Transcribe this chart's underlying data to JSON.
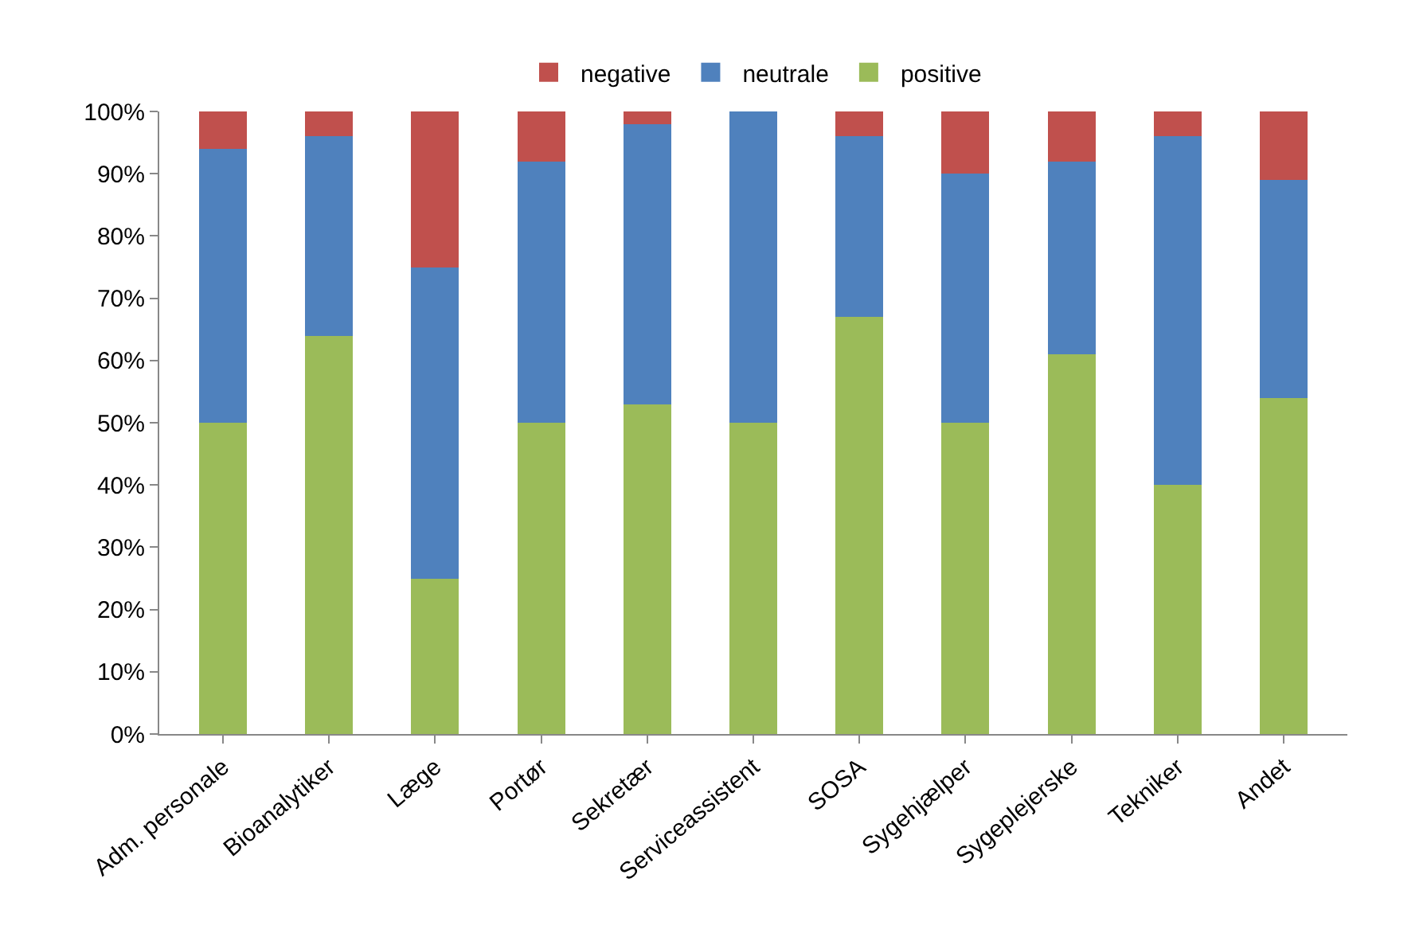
{
  "chart_data": {
    "type": "bar",
    "stacked": true,
    "categories": [
      "Adm. personale",
      "Bioanalytiker",
      "Læge",
      "Portør",
      "Sekretær",
      "Serviceassistent",
      "SOSA",
      "Sygehjælper",
      "Sygeplejerske",
      "Tekniker",
      "Andet"
    ],
    "series": [
      {
        "name": "positive",
        "color": "#9bbb59",
        "values": [
          50,
          64,
          25,
          50,
          53,
          50,
          67,
          50,
          61,
          40,
          54
        ]
      },
      {
        "name": "neutrale",
        "color": "#4f81bd",
        "values": [
          44,
          32,
          50,
          42,
          45,
          50,
          29,
          40,
          31,
          56,
          35
        ]
      },
      {
        "name": "negative",
        "color": "#c0504d",
        "values": [
          6,
          4,
          25,
          8,
          2,
          0,
          4,
          10,
          8,
          4,
          11
        ]
      }
    ],
    "ylim": [
      0,
      100
    ],
    "yticks": [
      {
        "value": 0,
        "label": "0%"
      },
      {
        "value": 10,
        "label": "10%"
      },
      {
        "value": 20,
        "label": "20%"
      },
      {
        "value": 30,
        "label": "30%"
      },
      {
        "value": 40,
        "label": "40%"
      },
      {
        "value": 50,
        "label": "50%"
      },
      {
        "value": 60,
        "label": "60%"
      },
      {
        "value": 70,
        "label": "70%"
      },
      {
        "value": 80,
        "label": "80%"
      },
      {
        "value": 90,
        "label": "90%"
      },
      {
        "value": 100,
        "label": "100%"
      }
    ],
    "grid": false,
    "legend": "top"
  }
}
